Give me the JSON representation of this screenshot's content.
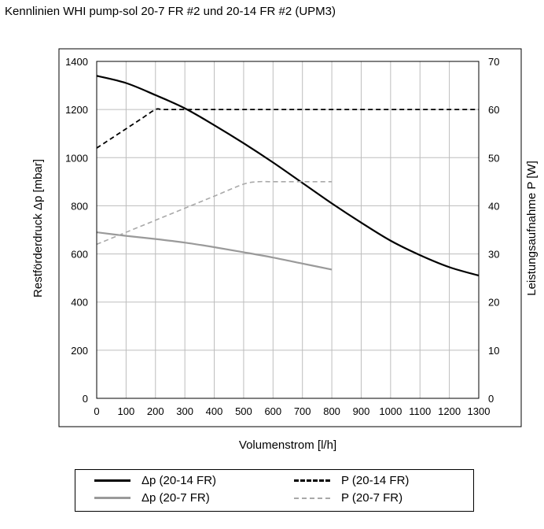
{
  "title": "Kennlinien WHI pump-sol 20-7 FR #2 und 20-14 FR #2 (UPM3)",
  "chart_data": {
    "type": "line",
    "title": "Kennlinien WHI pump-sol 20-7 FR #2 und 20-14 FR #2 (UPM3)",
    "xlabel": "Volumenstrom [l/h]",
    "ylabel": "Restförderdruck Δp [mbar]",
    "y2label": "Leistungsaufnahme P [W]",
    "xlim": [
      0,
      1300
    ],
    "ylim": [
      0,
      1400
    ],
    "y2lim": [
      0,
      70
    ],
    "xticks": [
      0,
      100,
      200,
      300,
      400,
      500,
      600,
      700,
      800,
      900,
      1000,
      1100,
      1200,
      1300
    ],
    "yticks": [
      0,
      200,
      400,
      600,
      800,
      1000,
      1200,
      1400
    ],
    "y2ticks": [
      0,
      10,
      20,
      30,
      40,
      50,
      60,
      70
    ],
    "grid": true,
    "legend_position": "bottom",
    "series": [
      {
        "name": "Δp (20-14 FR)",
        "axis": "left",
        "style": "solid-dark",
        "x": [
          0,
          100,
          200,
          300,
          400,
          500,
          600,
          700,
          800,
          900,
          1000,
          1100,
          1200,
          1300
        ],
        "y": [
          1340,
          1310,
          1260,
          1205,
          1135,
          1060,
          980,
          895,
          810,
          730,
          655,
          595,
          545,
          510
        ]
      },
      {
        "name": "Δp (20-7 FR)",
        "axis": "left",
        "style": "solid-grey",
        "x": [
          0,
          100,
          200,
          300,
          400,
          500,
          600,
          700,
          800
        ],
        "y": [
          690,
          675,
          662,
          647,
          628,
          607,
          585,
          560,
          535
        ]
      },
      {
        "name": "P (20-14 FR)",
        "axis": "right",
        "style": "dash-dark",
        "x": [
          0,
          50,
          100,
          150,
          200,
          225,
          300,
          400,
          500,
          600,
          700,
          800,
          900,
          1000,
          1100,
          1200,
          1300
        ],
        "y": [
          52,
          54,
          56,
          58,
          60,
          60,
          60,
          60,
          60,
          60,
          60,
          60,
          60,
          60,
          60,
          60,
          60
        ]
      },
      {
        "name": "P (20-7 FR)",
        "axis": "right",
        "style": "dash-grey",
        "x": [
          0,
          100,
          200,
          300,
          400,
          500,
          550,
          600,
          700,
          800
        ],
        "y": [
          32,
          34.5,
          37,
          39.5,
          42,
          44.5,
          45,
          45,
          45,
          45
        ]
      }
    ]
  },
  "legend": {
    "items": [
      {
        "label": "Δp (20-14 FR)"
      },
      {
        "label": "Δp (20-7 FR)"
      },
      {
        "label": "P (20-14 FR)"
      },
      {
        "label": "P (20-7 FR)"
      }
    ]
  },
  "colors": {
    "dark": "#000000",
    "grey": "#9a9a9a",
    "light_grey": "#a9a9a9",
    "grid": "#bdbdbd"
  }
}
